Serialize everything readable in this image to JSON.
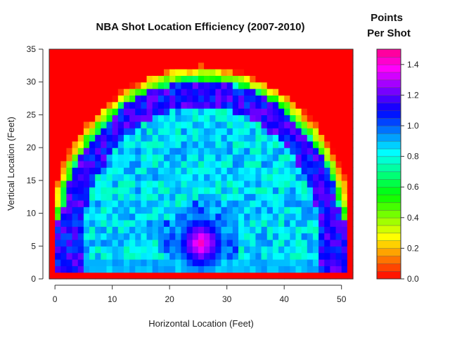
{
  "chart_data": {
    "type": "heatmap",
    "title": "NBA Shot Location Efficiency (2007-2010)",
    "xlabel": "Horizontal Location (Feet)",
    "ylabel": "Vertical Location (Feet)",
    "xlim": [
      -1,
      52
    ],
    "ylim": [
      0,
      35
    ],
    "x_ticks": [
      0,
      10,
      20,
      30,
      40,
      50
    ],
    "y_ticks": [
      0,
      5,
      10,
      15,
      20,
      25,
      30,
      35
    ],
    "legend": {
      "title_line1": "Points",
      "title_line2": "Per Shot",
      "range": [
        0,
        1.5
      ],
      "ticks": [
        0.0,
        0.2,
        0.4,
        0.6,
        0.8,
        1.0,
        1.2,
        1.4
      ],
      "tick_labels": [
        "0.0",
        "0.2",
        "0.4",
        "0.6",
        "0.8",
        "1.0",
        "1.2",
        "1.4"
      ],
      "placement": "right"
    },
    "color_scale": "rainbow (red at 0.0 → yellow → green → cyan → blue → purple → magenta at 1.5)",
    "structure": {
      "basket_center": [
        25.5,
        5.5
      ],
      "basket_peak_value": 1.45,
      "three_point_arc_radius": 23.5,
      "three_point_arc_value": 1.1,
      "corner_lines_x": [
        0.5,
        50.5
      ],
      "inside_arc_value": 0.85,
      "beyond_arc_value": 0.0,
      "baseline_band_y_max": 2.5
    }
  }
}
